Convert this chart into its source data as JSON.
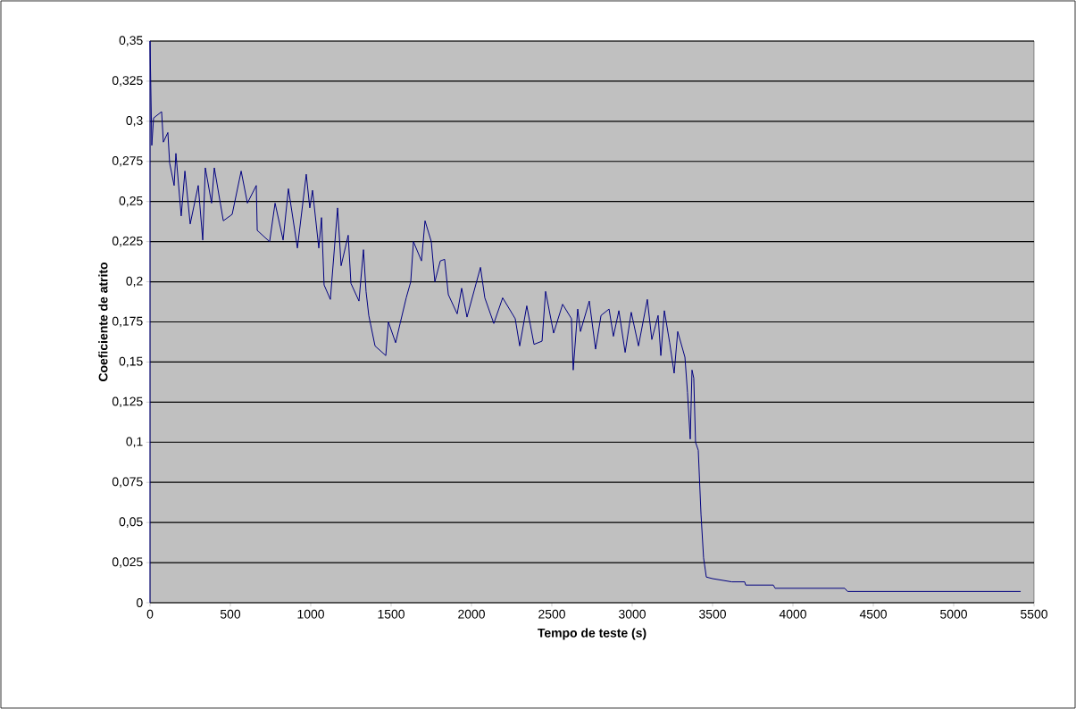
{
  "chart_data": {
    "type": "line",
    "xlabel": "Tempo de teste (s)",
    "ylabel": "Coeficiente de atrito",
    "color": "#000080",
    "grid": "y",
    "xlim": [
      0,
      5500
    ],
    "ylim": [
      0,
      0.35
    ],
    "xticks": [
      0,
      500,
      1000,
      1500,
      2000,
      2500,
      3000,
      3500,
      4000,
      4500,
      5000,
      5500
    ],
    "yticks": [
      0,
      {
        "value": 0.025,
        "label": "0,025"
      },
      {
        "value": 0.05,
        "label": "0,05"
      },
      {
        "value": 0.075,
        "label": "0,075"
      },
      {
        "value": 0.1,
        "label": "0,1"
      },
      {
        "value": 0.125,
        "label": "0,125"
      },
      {
        "value": 0.15,
        "label": "0,15"
      },
      {
        "value": 0.175,
        "label": "0,175"
      },
      {
        "value": 0.2,
        "label": "0,2"
      },
      {
        "value": 0.225,
        "label": "0,225"
      },
      {
        "value": 0.25,
        "label": "0,25"
      },
      {
        "value": 0.275,
        "label": "0,275"
      },
      {
        "value": 0.3,
        "label": "0,3"
      },
      {
        "value": 0.325,
        "label": "0,325"
      },
      {
        "value": 0.35,
        "label": "0,35"
      }
    ],
    "x": [
      0,
      0,
      11,
      22,
      72,
      83,
      111,
      122,
      150,
      161,
      194,
      217,
      250,
      300,
      328,
      344,
      383,
      400,
      456,
      511,
      567,
      606,
      661,
      667,
      744,
      778,
      828,
      861,
      917,
      972,
      994,
      1011,
      1050,
      1067,
      1083,
      1122,
      1167,
      1189,
      1233,
      1250,
      1300,
      1328,
      1344,
      1361,
      1400,
      1467,
      1483,
      1528,
      1556,
      1594,
      1622,
      1639,
      1689,
      1711,
      1750,
      1772,
      1806,
      1833,
      1856,
      1911,
      1939,
      1972,
      2056,
      2083,
      2139,
      2194,
      2272,
      2300,
      2344,
      2389,
      2439,
      2461,
      2511,
      2567,
      2622,
      2633,
      2661,
      2678,
      2733,
      2772,
      2806,
      2856,
      2883,
      2917,
      2956,
      2994,
      3039,
      3094,
      3122,
      3161,
      3178,
      3200,
      3233,
      3261,
      3283,
      3328,
      3344,
      3361,
      3372,
      3383,
      3394,
      3411,
      3428,
      3444,
      3461,
      3500,
      3620,
      3700,
      3706,
      3878,
      3889,
      4322,
      4340,
      4622,
      5417
    ],
    "values": [
      0,
      0.35,
      0.285,
      0.302,
      0.306,
      0.287,
      0.293,
      0.274,
      0.26,
      0.28,
      0.241,
      0.269,
      0.236,
      0.26,
      0.226,
      0.271,
      0.249,
      0.271,
      0.238,
      0.242,
      0.269,
      0.249,
      0.26,
      0.232,
      0.225,
      0.249,
      0.226,
      0.258,
      0.221,
      0.267,
      0.246,
      0.257,
      0.221,
      0.24,
      0.198,
      0.189,
      0.246,
      0.21,
      0.229,
      0.199,
      0.188,
      0.22,
      0.194,
      0.179,
      0.16,
      0.154,
      0.175,
      0.162,
      0.174,
      0.19,
      0.2,
      0.225,
      0.213,
      0.238,
      0.225,
      0.2,
      0.213,
      0.214,
      0.192,
      0.18,
      0.196,
      0.178,
      0.209,
      0.19,
      0.174,
      0.19,
      0.177,
      0.16,
      0.185,
      0.161,
      0.163,
      0.194,
      0.168,
      0.186,
      0.177,
      0.145,
      0.183,
      0.169,
      0.188,
      0.158,
      0.179,
      0.183,
      0.166,
      0.182,
      0.156,
      0.181,
      0.16,
      0.189,
      0.164,
      0.179,
      0.154,
      0.182,
      0.162,
      0.143,
      0.169,
      0.153,
      0.131,
      0.102,
      0.145,
      0.14,
      0.1,
      0.095,
      0.055,
      0.028,
      0.016,
      0.015,
      0.013,
      0.013,
      0.011,
      0.011,
      0.009,
      0.009,
      0.007,
      0.007,
      0.007
    ]
  }
}
